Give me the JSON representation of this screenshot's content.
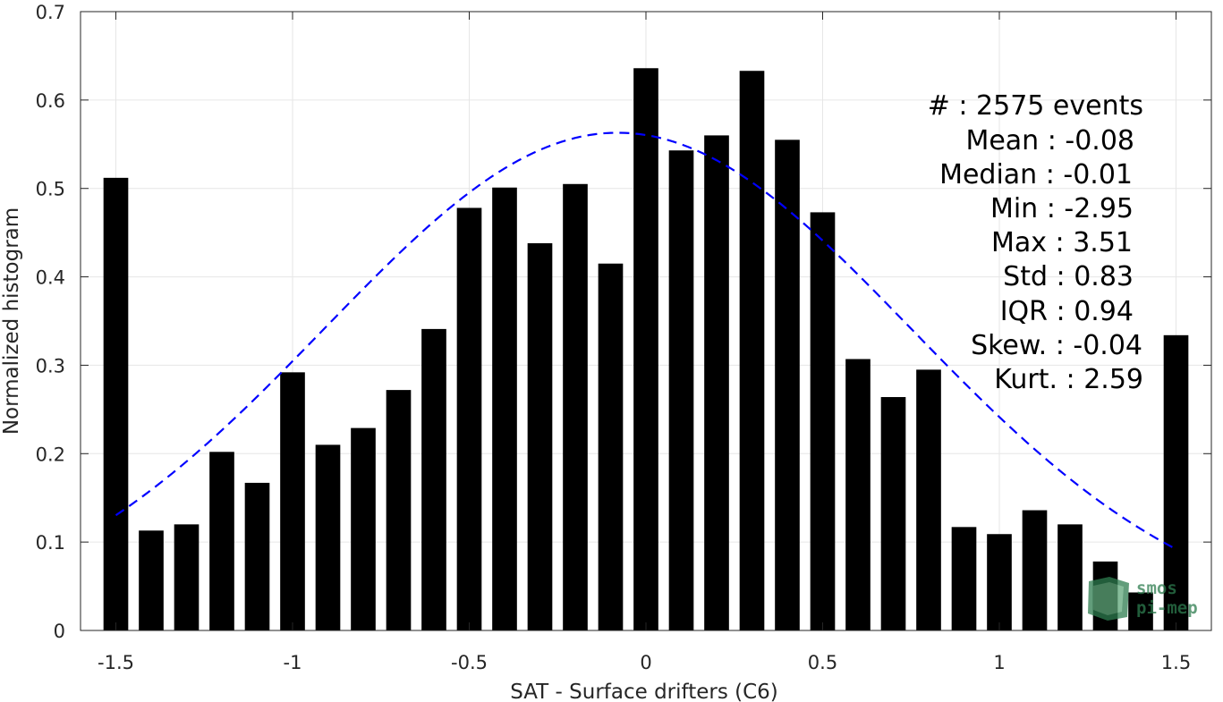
{
  "chart_data": {
    "type": "bar",
    "title": "",
    "xlabel": "SAT - Surface drifters (C6)",
    "ylabel": "Normalized histogram",
    "xlim": [
      -1.6,
      1.6
    ],
    "ylim": [
      0,
      0.7
    ],
    "grid": true,
    "x_ticks": [
      -1.5,
      -1,
      -0.5,
      0,
      0.5,
      1,
      1.5
    ],
    "x_tick_labels": [
      "-1.5",
      "-1",
      "-0.5",
      "0",
      "0.5",
      "1",
      "1.5"
    ],
    "y_ticks": [
      0,
      0.1,
      0.2,
      0.3,
      0.4,
      0.5,
      0.6,
      0.7
    ],
    "y_tick_labels": [
      "0",
      "0.1",
      "0.2",
      "0.3",
      "0.4",
      "0.5",
      "0.6",
      "0.7"
    ],
    "bar_width": 0.07,
    "bar_color": "#000000",
    "x": [
      -1.5,
      -1.4,
      -1.3,
      -1.2,
      -1.1,
      -1.0,
      -0.9,
      -0.8,
      -0.7,
      -0.6,
      -0.5,
      -0.4,
      -0.3,
      -0.2,
      -0.1,
      0.0,
      0.1,
      0.2,
      0.3,
      0.4,
      0.5,
      0.6,
      0.7,
      0.8,
      0.9,
      1.0,
      1.1,
      1.2,
      1.3,
      1.4,
      1.5
    ],
    "values": [
      0.512,
      0.113,
      0.12,
      0.202,
      0.167,
      0.292,
      0.21,
      0.229,
      0.272,
      0.341,
      0.478,
      0.501,
      0.438,
      0.505,
      0.415,
      0.636,
      0.543,
      0.56,
      0.633,
      0.555,
      0.473,
      0.307,
      0.264,
      0.295,
      0.117,
      0.109,
      0.136,
      0.12,
      0.078,
      0.043,
      0.334
    ],
    "fit_curve": {
      "style": "dashed",
      "color": "#0000ff",
      "mean": -0.08,
      "std": 0.83,
      "peak": 0.563,
      "x_range": [
        -1.5,
        1.5
      ]
    }
  },
  "stats": {
    "lines": [
      "#  : 2575 events",
      "Mean : -0.08",
      "Median : -0.01",
      "Min : -2.95",
      "Max : 3.51",
      "Std : 0.83",
      "IQR : 0.94",
      "Skew. : -0.04",
      "Kurt. : 2.59"
    ]
  },
  "logo": {
    "line1": "smos",
    "line2": "pi-mep",
    "color": "#2e7d4f"
  }
}
